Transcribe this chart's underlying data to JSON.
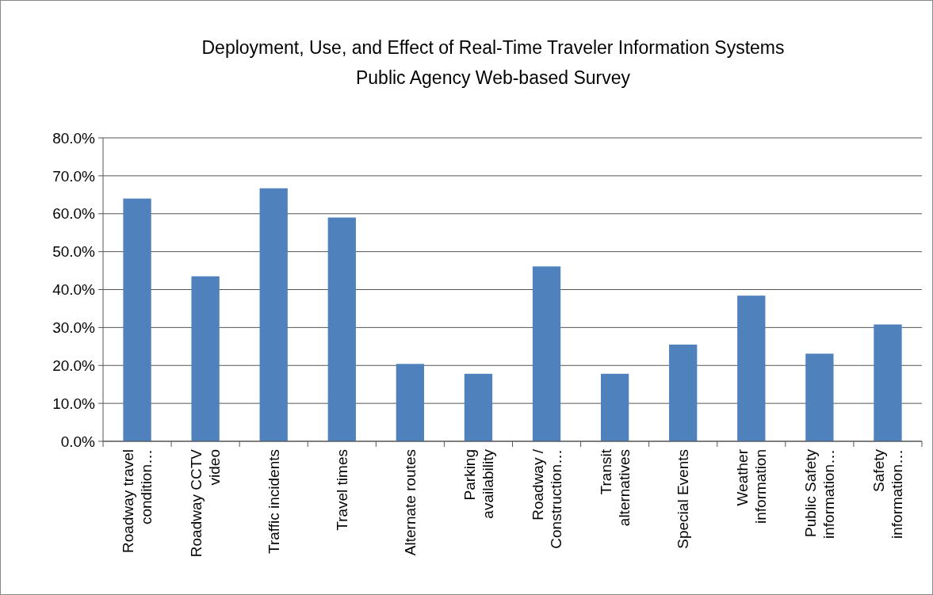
{
  "chart_data": {
    "type": "bar",
    "title": "Deployment, Use, and Effect of Real-Time Traveler Information Systems",
    "subtitle": "Public Agency Web-based Survey",
    "categories": [
      "Roadway travel condition…",
      "Roadway CCTV video",
      "Traffic incidents",
      "Travel times",
      "Alternate routes",
      "Parking availability",
      "Roadway / Construction…",
      "Transit alternatives",
      "Special Events",
      "Weather information",
      "Public Safety information…",
      "Safety information…"
    ],
    "values": [
      64.0,
      43.5,
      66.7,
      59.0,
      20.4,
      17.8,
      46.1,
      17.8,
      25.5,
      38.4,
      23.1,
      30.8
    ],
    "color": "#4f81bd",
    "ylim": [
      0,
      80
    ],
    "yticks": [
      {
        "value": 0,
        "label": "0.0%"
      },
      {
        "value": 10,
        "label": "10.0%"
      },
      {
        "value": 20,
        "label": "20.0%"
      },
      {
        "value": 30,
        "label": "30.0%"
      },
      {
        "value": 40,
        "label": "40.0%"
      },
      {
        "value": 50,
        "label": "50.0%"
      },
      {
        "value": 60,
        "label": "60.0%"
      },
      {
        "value": 70,
        "label": "70.0%"
      },
      {
        "value": 80,
        "label": "80.0%"
      }
    ],
    "grid": "y"
  }
}
